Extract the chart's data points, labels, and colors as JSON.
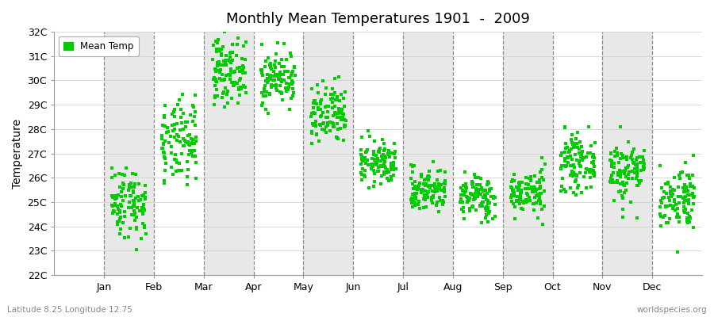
{
  "title": "Monthly Mean Temperatures 1901  -  2009",
  "ylabel": "Temperature",
  "xlabel_bottom_left": "Latitude 8.25 Longitude 12.75",
  "xlabel_bottom_right": "worldspecies.org",
  "legend_label": "Mean Temp",
  "dot_color": "#00CC00",
  "bg_color": "#FFFFFF",
  "alt_bg_color": "#E8E8E8",
  "years": 109,
  "ylim": [
    22,
    32
  ],
  "yticks": [
    22,
    23,
    24,
    25,
    26,
    27,
    28,
    29,
    30,
    31,
    32
  ],
  "month_means": [
    25.0,
    27.4,
    30.4,
    30.1,
    28.5,
    26.6,
    25.5,
    25.2,
    25.4,
    26.6,
    26.3,
    25.2
  ],
  "month_stds": [
    0.75,
    0.85,
    0.65,
    0.55,
    0.65,
    0.45,
    0.45,
    0.45,
    0.45,
    0.55,
    0.65,
    0.65
  ],
  "month_names": [
    "Jan",
    "Feb",
    "Mar",
    "Apr",
    "May",
    "Jun",
    "Jul",
    "Aug",
    "Sep",
    "Oct",
    "Nov",
    "Dec"
  ],
  "marker_size": 3.5
}
